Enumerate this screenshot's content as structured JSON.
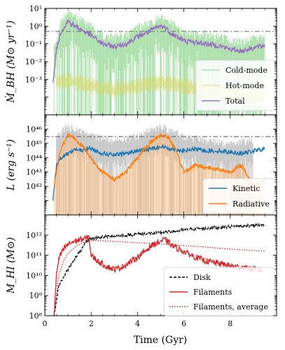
{
  "figure": {
    "x_label": "Time (Gyr)",
    "x_ticks": [
      "0",
      "2",
      "4",
      "6",
      "8"
    ],
    "xlim": [
      0,
      10
    ]
  },
  "chart_data": [
    {
      "type": "line",
      "ylabel": "Ṁ_BH (M⊙ yr⁻¹)",
      "yscale": "log",
      "ylim": [
        1e-05,
        10
      ],
      "y_ticks": [
        "10⁻³",
        "10⁻²",
        "10⁻¹",
        "10⁰",
        "10¹"
      ],
      "reference_line": {
        "y": 0.5,
        "style": "dash-dot",
        "color": "#777777"
      },
      "legend_position": "lower-right",
      "series": [
        {
          "name": "Cold-mode",
          "color": "#7fd07f",
          "style": "filled highly variable band",
          "x": [
            0.4,
            0.7,
            1.0,
            1.3,
            1.6,
            2.0,
            2.5,
            3.0,
            3.5,
            4.0,
            4.5,
            5.0,
            5.3,
            5.6,
            6.0,
            6.5,
            7.0,
            7.5,
            8.0,
            8.5,
            9.0,
            9.5
          ],
          "values": [
            0.02,
            0.5,
            2.0,
            1.2,
            0.6,
            0.3,
            0.1,
            0.07,
            0.1,
            0.25,
            0.5,
            1.0,
            0.8,
            0.35,
            0.15,
            0.12,
            0.1,
            0.08,
            0.05,
            0.04,
            0.06,
            0.08
          ]
        },
        {
          "name": "Hot-mode",
          "color": "#d8d870",
          "style": "band",
          "x": [
            0.5,
            1.0,
            2.0,
            3.0,
            4.0,
            5.0,
            6.0,
            7.0,
            8.0,
            9.0,
            9.5
          ],
          "values": [
            0.001,
            0.001,
            0.0005,
            0.0003,
            0.0005,
            0.0008,
            0.0005,
            0.0003,
            0.0002,
            0.00015,
            0.00012
          ]
        },
        {
          "name": "Total",
          "color": "#9b6fc4",
          "x": [
            0.35,
            0.5,
            0.7,
            0.9,
            1.0,
            1.1,
            1.3,
            1.6,
            2.0,
            2.5,
            3.0,
            3.5,
            4.0,
            4.5,
            4.8,
            5.0,
            5.2,
            5.5,
            6.0,
            6.5,
            7.0,
            7.5,
            8.0,
            8.5,
            9.0,
            9.5
          ],
          "values": [
            0.0005,
            0.05,
            0.5,
            1.2,
            2.0,
            1.5,
            1.0,
            0.6,
            0.3,
            0.1,
            0.07,
            0.1,
            0.25,
            0.5,
            0.8,
            1.0,
            0.8,
            0.35,
            0.15,
            0.12,
            0.1,
            0.08,
            0.05,
            0.04,
            0.06,
            0.08
          ]
        }
      ]
    },
    {
      "type": "line",
      "ylabel": "L (erg s⁻¹)",
      "yscale": "log",
      "ylim": [
        1e+40,
        1e+47
      ],
      "y_ticks": [
        "10⁴²",
        "10⁴³",
        "10⁴⁴",
        "10⁴⁵",
        "10⁴⁶"
      ],
      "reference_line": {
        "y": 3e+45,
        "style": "dash-dot",
        "color": "#777777"
      },
      "legend_position": "lower-right",
      "series": [
        {
          "name": "Kinetic",
          "color": "#1f77b4",
          "x": [
            0.35,
            0.5,
            0.7,
            1.0,
            1.3,
            1.6,
            1.9,
            2.2,
            2.5,
            3.0,
            3.5,
            4.0,
            4.5,
            5.0,
            5.5,
            6.0,
            6.5,
            7.0,
            7.5,
            8.0,
            8.5,
            9.0,
            9.5
          ],
          "values": [
            1e+41,
            3e+43,
            1e+44,
            2e+44,
            4e+44,
            3e+44,
            5e+44,
            3e+44,
            2e+44,
            1.5e+44,
            2e+44,
            3e+44,
            4e+44,
            6e+44,
            4e+44,
            3e+44,
            4e+44,
            3e+44,
            3e+44,
            2.5e+44,
            2e+44,
            3e+44,
            4e+44
          ]
        },
        {
          "name": "Radiative",
          "color": "#ff7f0e",
          "x": [
            0.4,
            0.6,
            0.8,
            1.0,
            1.2,
            1.5,
            1.8,
            2.1,
            2.5,
            3.0,
            3.5,
            4.0,
            4.5,
            5.0,
            5.3,
            5.6,
            6.0,
            6.5,
            7.0,
            7.5,
            8.0,
            8.5,
            9.0,
            9.5
          ],
          "values": [
            1e+42,
            1e+44,
            1e+45,
            4e+45,
            3e+45,
            1e+45,
            3e+44,
            5e+43,
            1e+43,
            3e+42,
            1e+43,
            1e+44,
            1e+45,
            4e+45,
            3e+45,
            5e+44,
            1e+43,
            3e+43,
            2e+43,
            1.5e+43,
            1e+43,
            3e+43,
            1e+42,
            3e+42
          ]
        },
        {
          "name": "",
          "color": "#aaaaaa",
          "style": "variability band",
          "x": [
            0.5,
            1.0,
            2.0,
            3.0,
            4.0,
            5.0,
            6.0,
            7.0,
            8.0,
            9.0
          ],
          "values": [
            1e+45,
            5e+45,
            1e+45,
            5e+44,
            1e+45,
            5e+45,
            1e+45,
            5e+44,
            3e+44,
            5e+44
          ]
        }
      ]
    },
    {
      "type": "line",
      "ylabel": "M_HI (M⊙)",
      "yscale": "log",
      "ylim": [
        100000000.0,
        10000000000000.0
      ],
      "y_ticks": [
        "10⁸",
        "10⁹",
        "10¹⁰",
        "10¹¹",
        "10¹²"
      ],
      "legend_position": "lower-right",
      "series": [
        {
          "name": "Disk",
          "color": "#000000",
          "style": "dashed",
          "x": [
            0.4,
            0.6,
            0.8,
            1.0,
            1.2,
            1.4,
            1.6,
            1.8,
            2.0,
            2.5,
            3.0,
            4.0,
            5.0,
            5.5,
            6.0,
            7.0,
            8.0,
            9.0,
            9.5
          ],
          "values": [
            100000000.0,
            3000000000.0,
            8000000000.0,
            20000000000.0,
            50000000000.0,
            100000000000.0,
            200000000000.0,
            500000000000.0,
            700000000000.0,
            800000000000.0,
            900000000000.0,
            1100000000000.0,
            1300000000000.0,
            1500000000000.0,
            1800000000000.0,
            2200000000000.0,
            2600000000000.0,
            3000000000000.0,
            3200000000000.0
          ]
        },
        {
          "name": "Filaments",
          "color": "#d62728",
          "x": [
            0.4,
            0.5,
            0.6,
            0.8,
            1.0,
            1.2,
            1.5,
            1.8,
            1.9,
            2.0,
            2.3,
            2.6,
            3.0,
            3.3,
            3.6,
            4.0,
            4.3,
            4.6,
            5.0,
            5.2,
            5.5,
            6.0,
            6.5,
            7.0,
            7.5,
            8.0,
            8.5,
            9.0,
            9.4
          ],
          "values": [
            100000000.0,
            10000000000.0,
            60000000000.0,
            200000000000.0,
            350000000000.0,
            450000000000.0,
            600000000000.0,
            700000000000.0,
            800000000000.0,
            100000000000.0,
            50000000000.0,
            30000000000.0,
            20000000000.0,
            25000000000.0,
            40000000000.0,
            80000000000.0,
            150000000000.0,
            300000000000.0,
            500000000000.0,
            600000000000.0,
            300000000000.0,
            150000000000.0,
            80000000000.0,
            50000000000.0,
            40000000000.0,
            30000000000.0,
            25000000000.0,
            20000000000.0,
            18000000000.0
          ]
        },
        {
          "name": "Filaments, average",
          "color": "#d62728",
          "style": "dotted",
          "x": [
            0.4,
            0.6,
            0.8,
            1.0,
            1.3,
            1.6,
            1.9,
            2.2,
            2.5,
            3.0,
            4.0,
            5.0,
            6.0,
            7.0,
            8.0,
            9.0,
            9.5
          ],
          "values": [
            100000000.0,
            10000000000.0,
            50000000000.0,
            120000000000.0,
            250000000000.0,
            400000000000.0,
            500000000000.0,
            550000000000.0,
            520000000000.0,
            480000000000.0,
            420000000000.0,
            360000000000.0,
            300000000000.0,
            250000000000.0,
            200000000000.0,
            170000000000.0,
            160000000000.0
          ]
        }
      ]
    }
  ]
}
